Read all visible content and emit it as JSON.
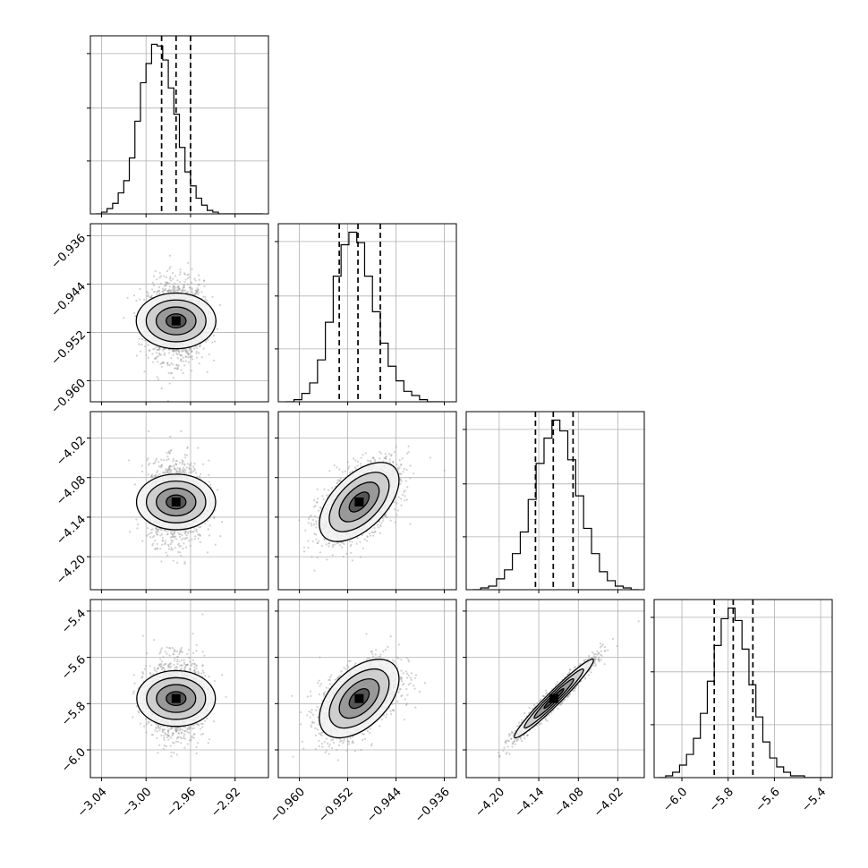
{
  "chart_data": {
    "type": "corner",
    "params": [
      {
        "range": [
          -3.05,
          -2.89
        ],
        "ticks": [
          -3.04,
          -3.0,
          -2.96,
          -2.92
        ],
        "tick_labels": [
          "−3.04",
          "−3.00",
          "−2.96",
          "−2.92"
        ],
        "quantiles": [
          -2.986,
          -2.973,
          -2.96
        ],
        "mean": -2.973,
        "sd": 0.0125,
        "hist_bins": [
          -3.045,
          -3.04,
          -3.035,
          -3.03,
          -3.025,
          -3.02,
          -3.015,
          -3.01,
          -3.005,
          -3.0,
          -2.995,
          -2.99,
          -2.985,
          -2.98,
          -2.975,
          -2.97,
          -2.965,
          -2.96,
          -2.955,
          -2.95,
          -2.945,
          -2.94,
          -2.935,
          -2.93,
          -2.925,
          -2.92,
          -2.915,
          -2.91,
          -2.905,
          -2.9
        ],
        "hist_counts": [
          0,
          1,
          3,
          6,
          12,
          19,
          32,
          53,
          75,
          86,
          97,
          96,
          88,
          72,
          57,
          38,
          24,
          16,
          9,
          5,
          2,
          1,
          0,
          0,
          0,
          0,
          0,
          0,
          0,
          0
        ]
      },
      {
        "range": [
          -0.9635,
          -0.934
        ],
        "ticks": [
          -0.96,
          -0.952,
          -0.944,
          -0.936
        ],
        "tick_labels": [
          "−0.960",
          "−0.952",
          "−0.944",
          "−0.936"
        ],
        "quantiles": [
          -0.9534,
          -0.9503,
          -0.9466
        ],
        "mean": -0.9501,
        "sd": 0.0033,
        "hist_bins": [
          -0.9622,
          -0.9609,
          -0.9596,
          -0.9583,
          -0.957,
          -0.9557,
          -0.9544,
          -0.9531,
          -0.9518,
          -0.9505,
          -0.9492,
          -0.9479,
          -0.9466,
          -0.9453,
          -0.944,
          -0.9427,
          -0.9414,
          -0.9401,
          -0.9388,
          -0.9375
        ],
        "hist_counts": [
          0,
          1,
          4,
          9,
          20,
          38,
          60,
          75,
          81,
          76,
          60,
          43,
          28,
          17,
          10,
          5,
          3,
          1,
          0,
          0
        ]
      },
      {
        "range": [
          -4.25,
          -3.98
        ],
        "ticks": [
          -4.2,
          -4.14,
          -4.08,
          -4.02
        ],
        "tick_labels": [
          "−4.20",
          "−4.14",
          "−4.08",
          "−4.02"
        ],
        "quantiles": [
          -4.145,
          -4.118,
          -4.088
        ],
        "mean": -4.117,
        "sd": 0.03,
        "hist_bins": [
          -4.24,
          -4.228,
          -4.216,
          -4.204,
          -4.192,
          -4.18,
          -4.168,
          -4.156,
          -4.144,
          -4.132,
          -4.12,
          -4.108,
          -4.096,
          -4.084,
          -4.072,
          -4.06,
          -4.048,
          -4.036,
          -4.024,
          -4.012,
          -4.0
        ],
        "hist_counts": [
          0,
          1,
          2,
          6,
          11,
          20,
          32,
          50,
          70,
          84,
          94,
          88,
          72,
          52,
          34,
          20,
          10,
          5,
          2,
          1,
          0
        ]
      },
      {
        "range": [
          -6.12,
          -5.35
        ],
        "ticks": [
          -6.0,
          -5.8,
          -5.6,
          -5.4
        ],
        "tick_labels": [
          "−6.0",
          "−5.8",
          "−5.6",
          "−5.4"
        ],
        "quantiles": [
          -5.86,
          -5.778,
          -5.693
        ],
        "mean": -5.778,
        "sd": 0.085,
        "hist_bins": [
          -6.1,
          -6.07,
          -6.04,
          -6.01,
          -5.98,
          -5.95,
          -5.92,
          -5.89,
          -5.86,
          -5.83,
          -5.8,
          -5.77,
          -5.74,
          -5.71,
          -5.68,
          -5.65,
          -5.62,
          -5.59,
          -5.56,
          -5.53,
          -5.5,
          -5.47,
          -5.44,
          -5.41,
          -5.38
        ],
        "hist_counts": [
          0,
          1,
          3,
          7,
          13,
          22,
          36,
          54,
          74,
          89,
          95,
          88,
          72,
          52,
          34,
          20,
          11,
          6,
          3,
          1,
          1,
          0,
          0,
          0,
          0
        ]
      }
    ],
    "correlations": [
      [
        0,
        1,
        0.0
      ],
      [
        0,
        2,
        0.0
      ],
      [
        0,
        3,
        0.0
      ],
      [
        1,
        2,
        0.55
      ],
      [
        1,
        3,
        0.5
      ],
      [
        2,
        3,
        0.97
      ]
    ],
    "colors": {
      "hist": "#000000",
      "points": "#9a9a9a",
      "contour": "#000000",
      "grid": "#b0b0b0"
    }
  }
}
